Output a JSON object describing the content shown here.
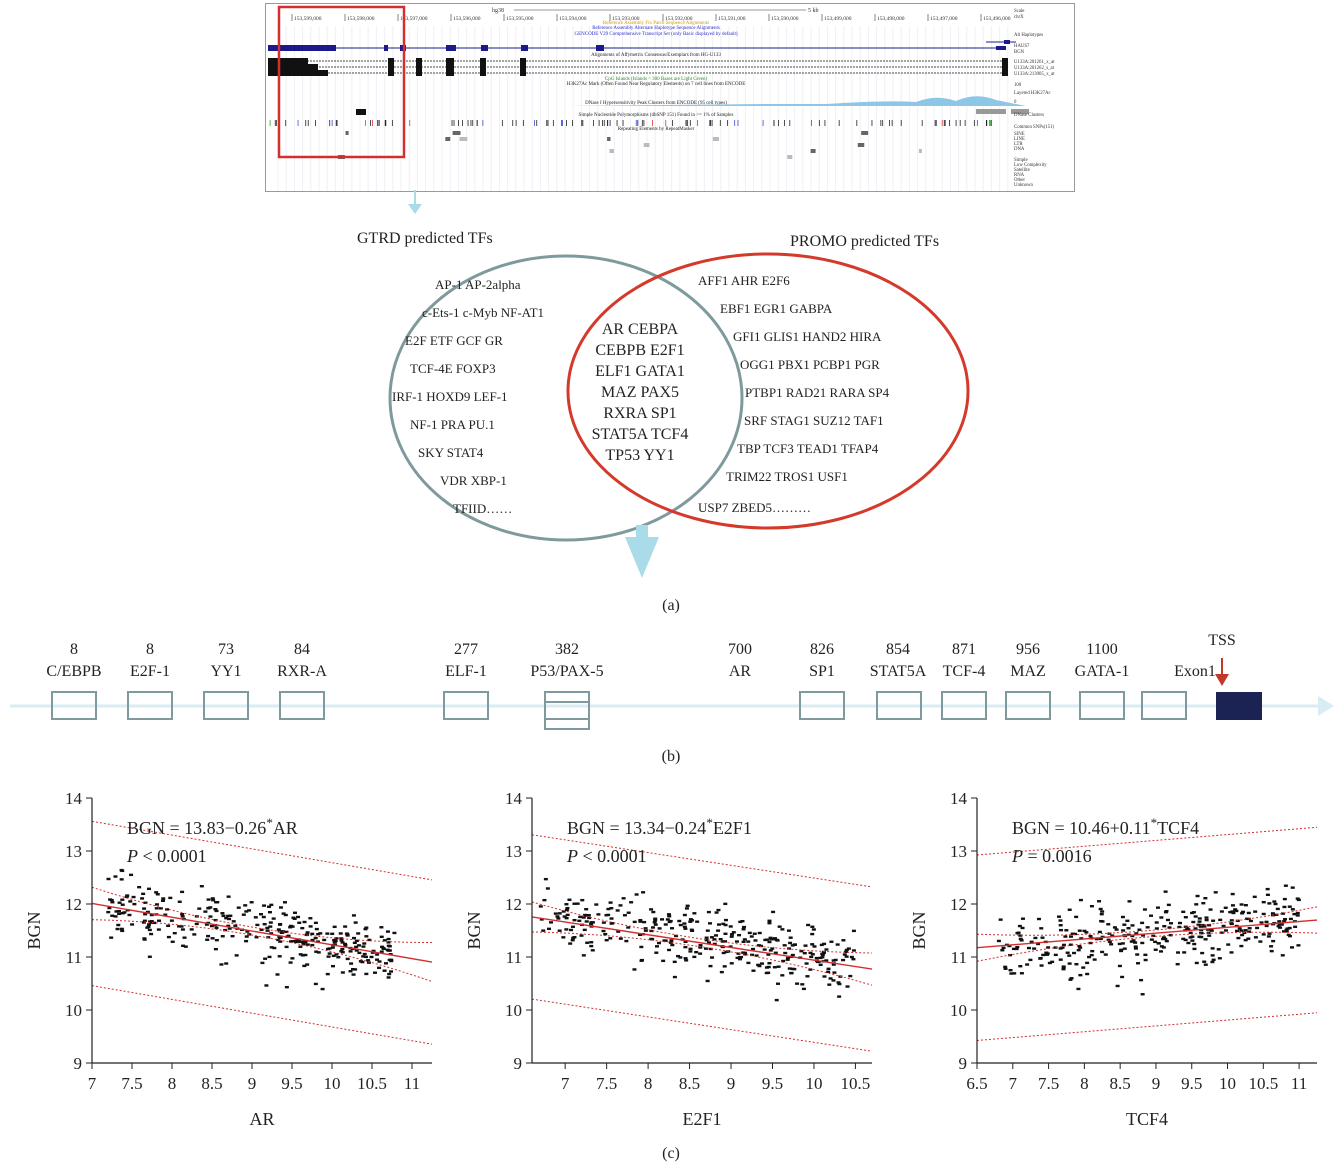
{
  "figure": {
    "caption_a": "(a)",
    "caption_b": "(b)",
    "caption_c": "(c)"
  },
  "browser": {
    "assembly": "hg38",
    "scale_label": "5 kb",
    "coordinates": [
      "153,599,000",
      "153,598,000",
      "153,597,000",
      "153,596,000",
      "153,595,000",
      "153,594,000",
      "153,593,000",
      "153,592,000",
      "153,591,000",
      "153,590,000",
      "153,499,000",
      "153,498,000",
      "153,497,000",
      "153,496,000"
    ],
    "track_titles": [
      "Reference Assembly Fix Patch Sequence Alignments",
      "Reference Assembly Alternate Haplotype Sequence Alignments",
      "GENCODE V29 Comprehensive Transcript Set (only Basic displayed by default)",
      "Alignments of Affymetrix Consensus/Exemplars from HG-U133",
      "CpG Islands (Islands < 300 Bases are Light Green)",
      "H3K27Ac Mark (Often Found Near Regulatory Elements) on 7 cell lines from ENCODE",
      "DNase I Hypersensitivity Peak Clusters from ENCODE (95 cell types)",
      "Simple Nucleotide Polymorphisms (dbSNP 151) Found in >= 1% of Samples",
      "Repeating Elements by RepeatMasker"
    ],
    "right_labels": [
      "Scale",
      "chrX",
      "Alt Haplotypes",
      "HAUS7",
      "BGN",
      "U133A:201261_x_at",
      "U133A:201262_s_at",
      "U133A:213905_x_at",
      "100",
      "Layered H3K27Ac",
      "0",
      "DNase Clusters",
      "Common SNPs(151)",
      "SINE",
      "LINE",
      "LTR",
      "DNA",
      "Simple",
      "Low Complexity",
      "Satellite",
      "RNA",
      "Other",
      "Unknown"
    ],
    "highlight_color": "#d32f2f"
  },
  "venn": {
    "left_title": "GTRD predicted TFs",
    "right_title": "PROMO predicted TFs",
    "left_color": "#7f9a9c",
    "right_color": "#d33a2c",
    "left_only": [
      "AP-1 AP-2alpha",
      "c-Ets-1 c-Myb NF-AT1",
      "E2F ETF GCF GR",
      "TCF-4E FOXP3",
      "IRF-1 HOXD9 LEF-1",
      "NF-1 PRA PU.1",
      "SKY STAT4",
      "VDR XBP-1",
      "TFIID……"
    ],
    "shared": [
      "AR CEBPA",
      "CEBPB E2F1",
      "ELF1 GATA1",
      "MAZ PAX5",
      "RXRA SP1",
      "STAT5A TCF4",
      "TP53 YY1"
    ],
    "right_only": [
      "AFF1 AHR E2F6",
      "EBF1 EGR1 GABPA",
      "GFI1 GLIS1 HAND2 HIRA",
      "OGG1 PBX1 PCBP1 PGR",
      "PTBP1 RAD21 RARA SP4",
      "SRF STAG1 SUZ12 TAF1",
      "TBP TCF3 TEAD1 TFAP4",
      "TRIM22 TROS1 USF1",
      "USP7 ZBED5………"
    ]
  },
  "promoter": {
    "sites": [
      {
        "pos": "8",
        "name": "C/EBPB"
      },
      {
        "pos": "8",
        "name": "E2F-1"
      },
      {
        "pos": "73",
        "name": "YY1"
      },
      {
        "pos": "84",
        "name": "RXR-A"
      },
      {
        "pos": "277",
        "name": "ELF-1"
      },
      {
        "pos": "382",
        "name": "P53/PAX-5"
      },
      {
        "pos": "700",
        "name": "AR"
      },
      {
        "pos": "826",
        "name": "SP1"
      },
      {
        "pos": "854",
        "name": "STAT5A"
      },
      {
        "pos": "871",
        "name": "TCF-4"
      },
      {
        "pos": "956",
        "name": "MAZ"
      },
      {
        "pos": "1100",
        "name": "GATA-1"
      }
    ],
    "exon_label": "Exon1",
    "tss_label": "TSS",
    "line_color": "#d8edf3",
    "box_color": "#7f9a9c",
    "exon_color": "#1b2354",
    "tss_color": "#c0392b"
  },
  "chart_data": [
    {
      "type": "scatter",
      "xlabel": "AR",
      "ylabel": "BGN",
      "xlim": [
        7,
        11.25
      ],
      "ylim": [
        9,
        14
      ],
      "xticks": [
        "7",
        "7.5",
        "8",
        "8.5",
        "9",
        "9.5",
        "10",
        "10.5",
        "11"
      ],
      "yticks": [
        "9",
        "10",
        "11",
        "12",
        "13",
        "14"
      ],
      "equation_prefix": "BGN = 13.83−0.26",
      "equation_star": "*",
      "equation_suffix": "AR",
      "p_label": "P",
      "p_text": " < 0.0001",
      "fit": {
        "intercept": 13.83,
        "slope": -0.26
      },
      "bands": {
        "ci": 0.25,
        "pi": 1.55
      },
      "x_range": [
        7.2,
        10.8
      ],
      "y_center": 11.6,
      "n_points": 340,
      "line_color": "#d32f2f"
    },
    {
      "type": "scatter",
      "xlabel": "E2F1",
      "ylabel": "BGN",
      "xlim": [
        6.6,
        10.7
      ],
      "ylim": [
        9,
        14
      ],
      "xticks": [
        "7",
        "7.5",
        "8",
        "8.5",
        "9",
        "9.5",
        "10",
        "10.5"
      ],
      "yticks": [
        "9",
        "10",
        "11",
        "12",
        "13",
        "14"
      ],
      "equation_prefix": "BGN = 13.34−0.24",
      "equation_star": "*",
      "equation_suffix": "E2F1",
      "p_label": "P",
      "p_text": " < 0.0001",
      "fit": {
        "intercept": 13.34,
        "slope": -0.24
      },
      "bands": {
        "ci": 0.25,
        "pi": 1.55
      },
      "x_range": [
        6.7,
        10.5
      ],
      "y_center": 11.6,
      "n_points": 340,
      "line_color": "#d32f2f"
    },
    {
      "type": "scatter",
      "xlabel": "TCF4",
      "ylabel": "BGN",
      "xlim": [
        6.5,
        11.25
      ],
      "ylim": [
        9,
        14
      ],
      "xticks": [
        "6.5",
        "7",
        "7.5",
        "8",
        "8.5",
        "9",
        "9.5",
        "10",
        "10.5",
        "11"
      ],
      "yticks": [
        "9",
        "10",
        "11",
        "12",
        "13",
        "14"
      ],
      "equation_prefix": "BGN = 10.46+0.11",
      "equation_star": "*",
      "equation_suffix": "TCF4",
      "p_label": "P",
      "p_text": " = 0.0016",
      "fit": {
        "intercept": 10.46,
        "slope": 0.11
      },
      "bands": {
        "ci": 0.2,
        "pi": 1.75
      },
      "x_range": [
        6.8,
        11.0
      ],
      "y_center": 11.6,
      "n_points": 340,
      "line_color": "#d32f2f"
    }
  ]
}
